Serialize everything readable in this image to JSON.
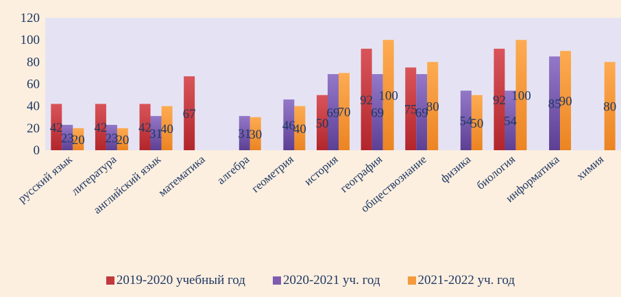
{
  "chart_data": {
    "type": "bar",
    "categories": [
      "русский язык",
      "литература",
      "английский язык",
      "математика",
      "алгебра",
      "геометрия",
      "история",
      "география",
      "обществознание",
      "физика",
      "биология",
      "информатика",
      "химия"
    ],
    "series": [
      {
        "name": "2019-2020 учебный год",
        "color": "#c0393d",
        "values": [
          42,
          42,
          42,
          67,
          null,
          null,
          50,
          92,
          75,
          null,
          92,
          null,
          null
        ]
      },
      {
        "name": "2020-2021 уч. год",
        "color": "#7e5cb0",
        "values": [
          23,
          23,
          31,
          null,
          31,
          46,
          69,
          69,
          69,
          54,
          54,
          85,
          null
        ]
      },
      {
        "name": "2021-2022 уч. год",
        "color": "#f59a3c",
        "values": [
          20,
          20,
          40,
          null,
          30,
          40,
          70,
          100,
          80,
          50,
          100,
          90,
          80
        ]
      }
    ],
    "ylim": [
      0,
      120
    ],
    "yticks": [
      0,
      20,
      40,
      60,
      80,
      100,
      120
    ],
    "grid": false,
    "legend_position": "bottom"
  }
}
